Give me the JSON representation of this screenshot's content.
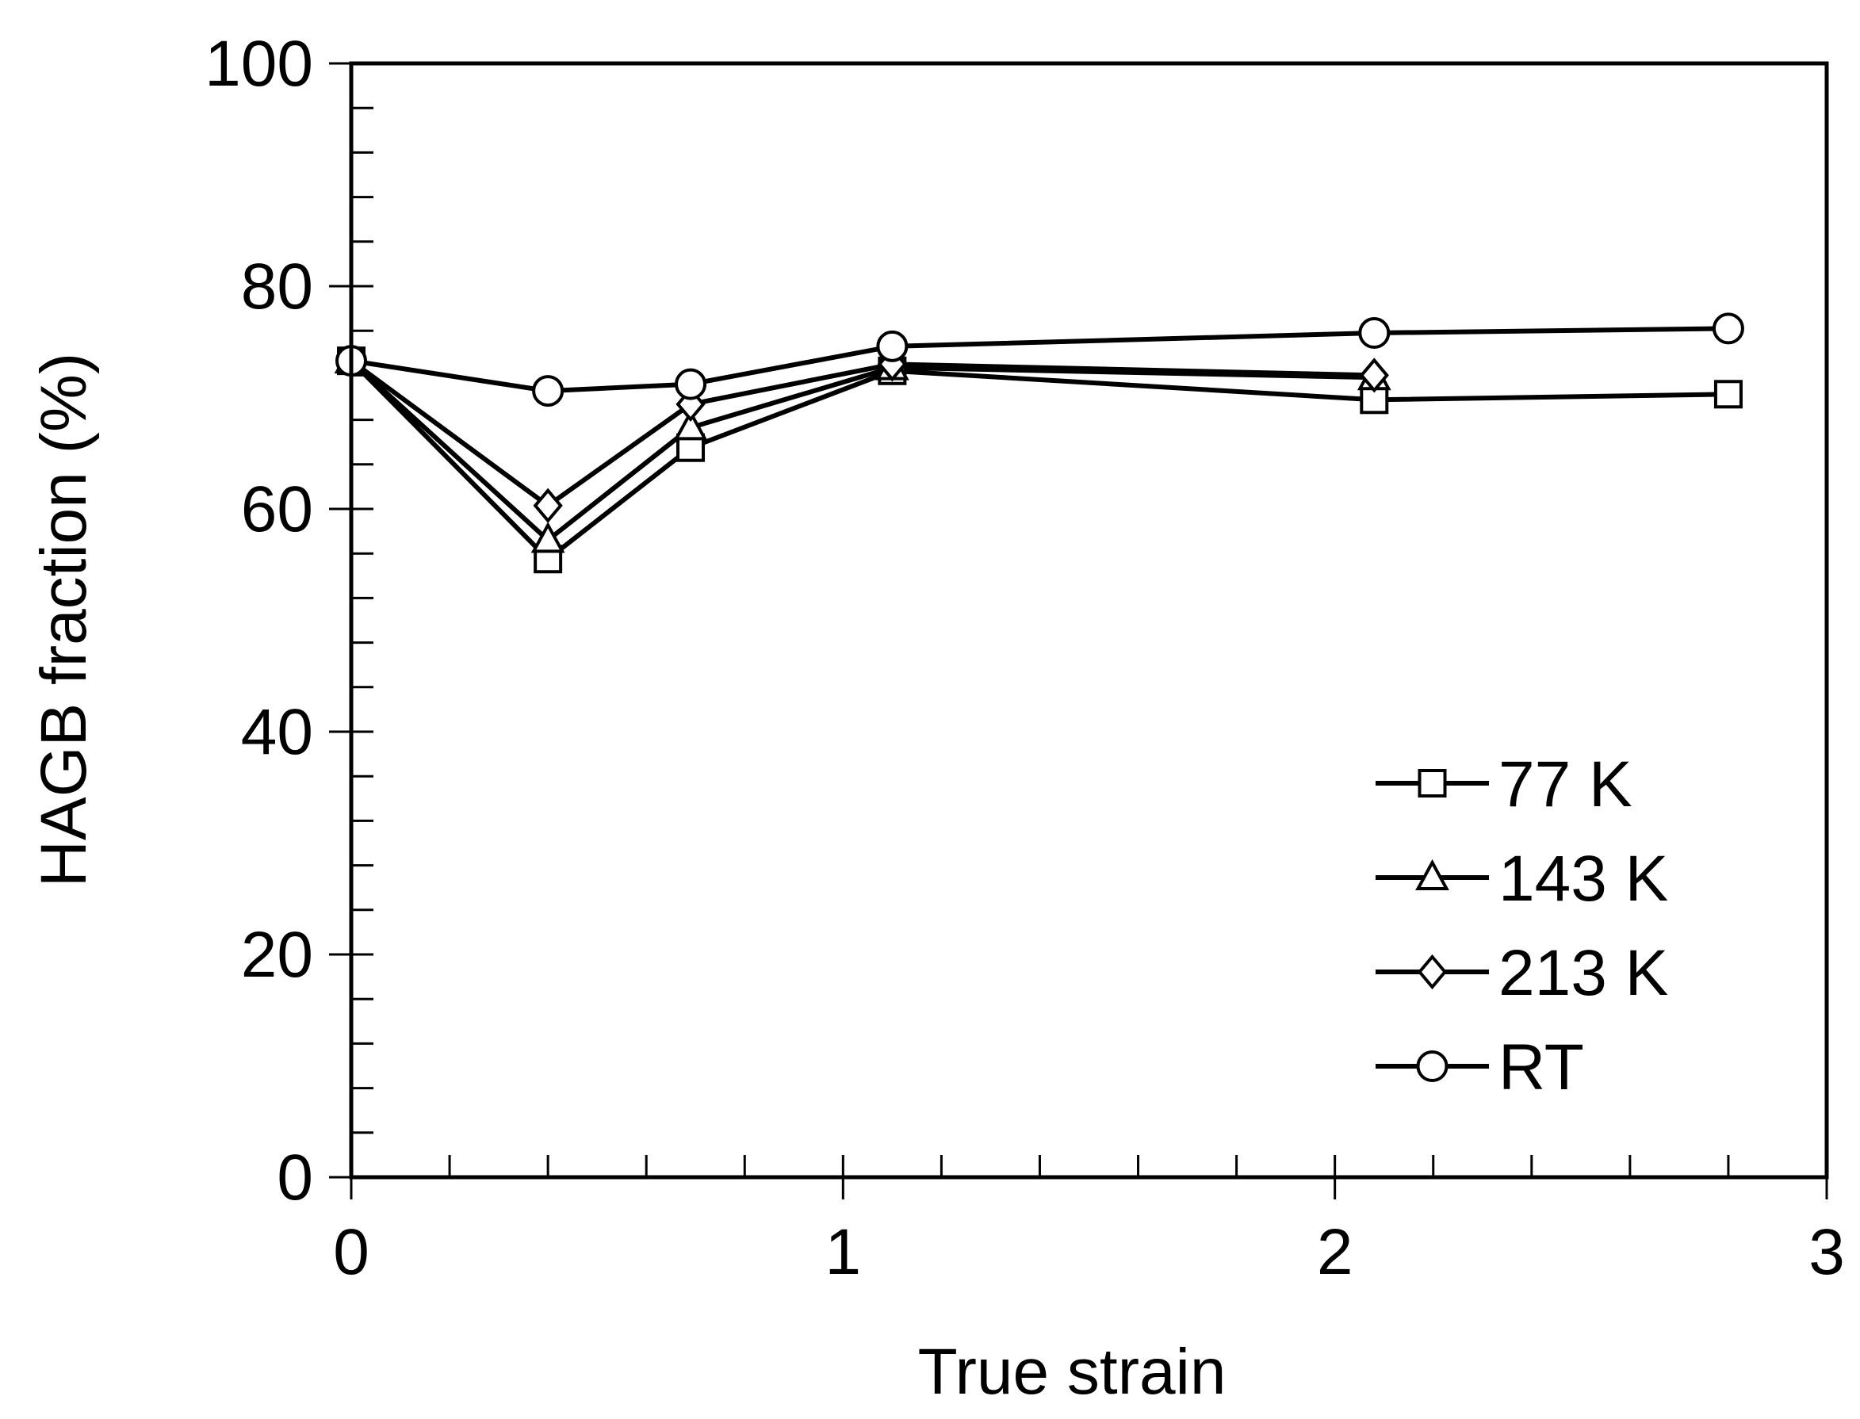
{
  "chart_data": {
    "type": "line",
    "title": "",
    "xlabel": "True strain",
    "ylabel": "HAGB fraction (%)",
    "xlim": [
      0,
      3
    ],
    "ylim": [
      0,
      100
    ],
    "x_ticks": [
      0,
      1,
      2,
      3
    ],
    "x_tick_labels": [
      "0",
      "1",
      "2",
      "3"
    ],
    "x_minor_step": 0.2,
    "y_ticks": [
      0,
      20,
      40,
      60,
      80,
      100
    ],
    "y_tick_labels": [
      "0",
      "20",
      "40",
      "60",
      "80",
      "100"
    ],
    "y_minor_step": 4,
    "grid": false,
    "legend_position": "bottom-right",
    "series": [
      {
        "name": "77 K",
        "marker": "square",
        "x": [
          0,
          0.4,
          0.69,
          1.1,
          2.08,
          2.8
        ],
        "y": [
          73.3,
          55.5,
          65.5,
          72.4,
          69.8,
          70.3
        ]
      },
      {
        "name": "143 K",
        "marker": "triangle",
        "x": [
          0,
          0.4,
          0.69,
          1.1,
          2.08
        ],
        "y": [
          73.3,
          57.2,
          67.3,
          72.7,
          71.8
        ]
      },
      {
        "name": "213 K",
        "marker": "diamond",
        "x": [
          0,
          0.4,
          0.69,
          1.1,
          2.08
        ],
        "y": [
          73.3,
          60.3,
          69.4,
          73.0,
          72.0
        ]
      },
      {
        "name": "RT",
        "marker": "circle",
        "x": [
          0,
          0.4,
          0.69,
          1.1,
          2.08,
          2.8
        ],
        "y": [
          73.3,
          70.6,
          71.2,
          74.6,
          75.8,
          76.2
        ]
      }
    ]
  }
}
